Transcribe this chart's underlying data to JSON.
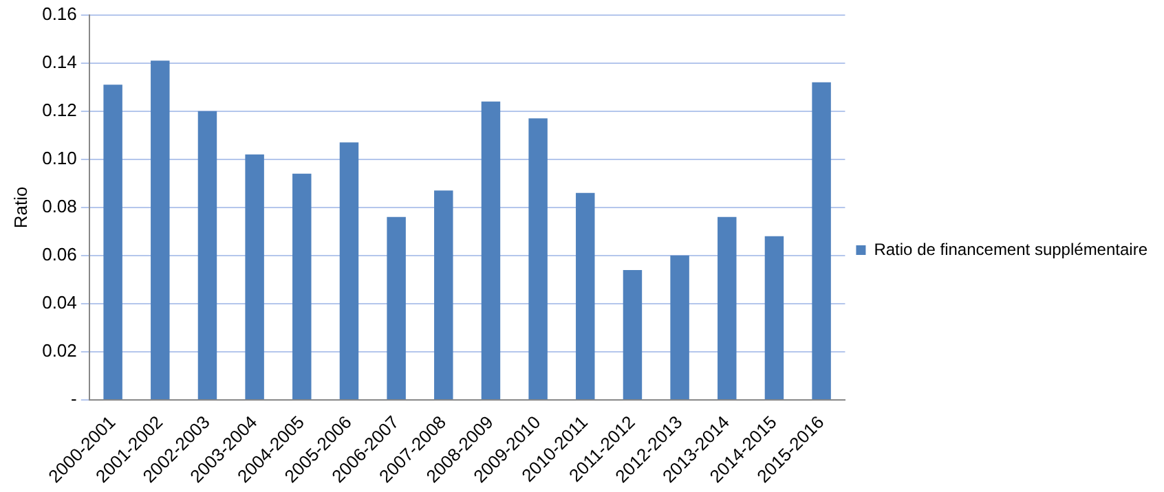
{
  "chart_data": {
    "type": "bar",
    "ylabel": "Ratio",
    "categories": [
      "2000-2001",
      "2001-2002",
      "2002-2003",
      "2003-2004",
      "2004-2005",
      "2005-2006",
      "2006-2007",
      "2007-2008",
      "2008-2009",
      "2009-2010",
      "2010-2011",
      "2011-2012",
      "2012-2013",
      "2013-2014",
      "2014-2015",
      "2015-2016"
    ],
    "series": [
      {
        "name": "Ratio de financement supplémentaire",
        "color": "#4f81bd",
        "values": [
          0.131,
          0.141,
          0.12,
          0.102,
          0.094,
          0.107,
          0.076,
          0.087,
          0.124,
          0.117,
          0.086,
          0.054,
          0.06,
          0.076,
          0.068,
          0.132
        ]
      }
    ],
    "ylim": [
      0,
      0.16
    ],
    "yticks": [
      {
        "value": 0,
        "label": "-"
      },
      0.02,
      0.04,
      0.06,
      0.08,
      {
        "value": 0.1,
        "label": "0.10"
      },
      0.12,
      0.14,
      0.16
    ],
    "grid": "y",
    "legend": "right"
  }
}
